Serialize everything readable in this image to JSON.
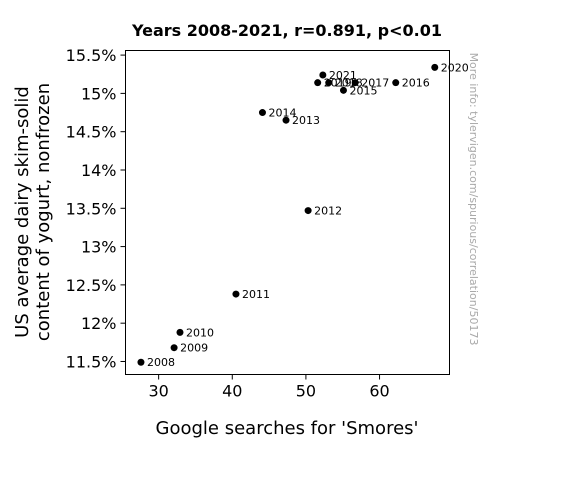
{
  "chart_data": {
    "type": "scatter",
    "title": "Years 2008-2021, r=0.891, p<0.01",
    "xlabel": "Google searches for 'Smores'",
    "ylabel_lines": [
      "US average dairy skim-solid",
      "content of yogurt, nonfrozen"
    ],
    "xlim": [
      25.5,
      69.5
    ],
    "ylim": [
      11.33,
      15.56
    ],
    "x_ticks": [
      {
        "value": 30,
        "label": "30"
      },
      {
        "value": 40,
        "label": "40"
      },
      {
        "value": 50,
        "label": "50"
      },
      {
        "value": 60,
        "label": "60"
      }
    ],
    "y_ticks": [
      {
        "value": 11.5,
        "label": "11.5%"
      },
      {
        "value": 12,
        "label": "12%"
      },
      {
        "value": 12.5,
        "label": "12.5%"
      },
      {
        "value": 13,
        "label": "13%"
      },
      {
        "value": 13.5,
        "label": "13.5%"
      },
      {
        "value": 14,
        "label": "14%"
      },
      {
        "value": 14.5,
        "label": "14.5%"
      },
      {
        "value": 15,
        "label": "15%"
      },
      {
        "value": 15.5,
        "label": "15.5%"
      }
    ],
    "points": [
      {
        "label": "2008",
        "x": 27.6,
        "y": 11.49
      },
      {
        "label": "2009",
        "x": 32.1,
        "y": 11.68
      },
      {
        "label": "2010",
        "x": 32.9,
        "y": 11.88
      },
      {
        "label": "2011",
        "x": 40.5,
        "y": 12.38
      },
      {
        "label": "2012",
        "x": 50.3,
        "y": 13.47
      },
      {
        "label": "2013",
        "x": 47.3,
        "y": 14.65
      },
      {
        "label": "2014",
        "x": 44.1,
        "y": 14.75
      },
      {
        "label": "2015",
        "x": 55.1,
        "y": 15.04
      },
      {
        "label": "2016",
        "x": 62.2,
        "y": 15.14
      },
      {
        "label": "2017",
        "x": 56.7,
        "y": 15.14
      },
      {
        "label": "2018",
        "x": 53.1,
        "y": 15.14
      },
      {
        "label": "2019",
        "x": 51.6,
        "y": 15.14
      },
      {
        "label": "2020",
        "x": 67.5,
        "y": 15.34
      },
      {
        "label": "2021",
        "x": 52.3,
        "y": 15.24
      }
    ],
    "marker_color": "#000000",
    "grid": false,
    "watermark": "More info: tylervigen.com/spurious/correlation/50173"
  }
}
